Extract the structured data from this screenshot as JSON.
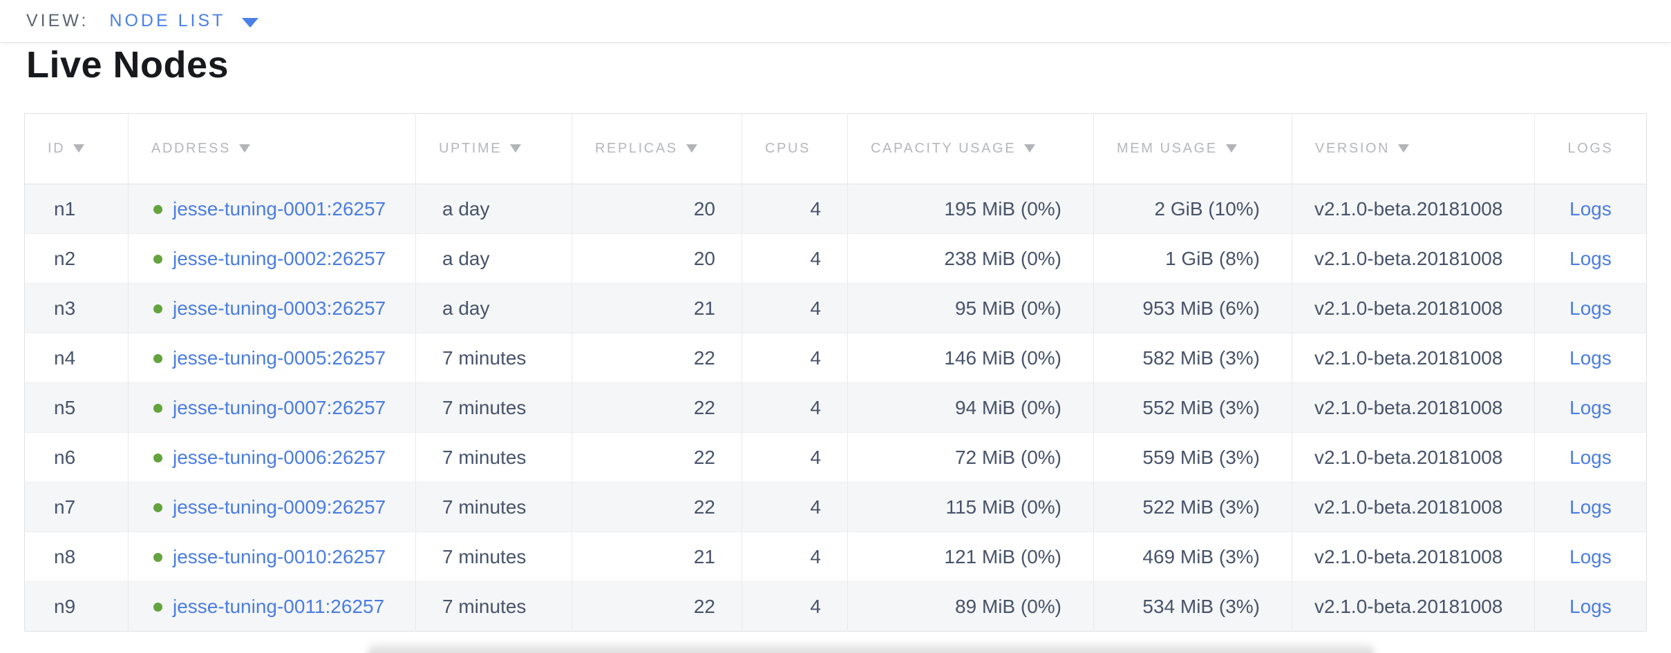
{
  "view_bar": {
    "label": "VIEW:",
    "selected_view": "NODE LIST",
    "dropdown_icon": "caret-down-icon"
  },
  "page": {
    "title": "Live Nodes"
  },
  "table": {
    "node_status_icon": "green-dot",
    "columns": [
      {
        "key": "id",
        "label": "ID",
        "sorted": true
      },
      {
        "key": "address",
        "label": "ADDRESS",
        "sorted": true
      },
      {
        "key": "uptime",
        "label": "UPTIME",
        "sorted": true
      },
      {
        "key": "replicas",
        "label": "REPLICAS",
        "sorted": true
      },
      {
        "key": "cpus",
        "label": "CPUS",
        "sorted": false
      },
      {
        "key": "capacity_usage",
        "label": "CAPACITY USAGE",
        "sorted": true
      },
      {
        "key": "mem_usage",
        "label": "MEM USAGE",
        "sorted": true
      },
      {
        "key": "version",
        "label": "VERSION",
        "sorted": true
      },
      {
        "key": "logs",
        "label": "LOGS",
        "sorted": false
      }
    ],
    "rows": [
      {
        "id": "n1",
        "address": "jesse-tuning-0001:26257",
        "uptime": "a day",
        "replicas": 20,
        "cpus": 4,
        "capacity_usage": "195 MiB (0%)",
        "mem_usage": "2 GiB (10%)",
        "version": "v2.1.0-beta.20181008",
        "logs_label": "Logs"
      },
      {
        "id": "n2",
        "address": "jesse-tuning-0002:26257",
        "uptime": "a day",
        "replicas": 20,
        "cpus": 4,
        "capacity_usage": "238 MiB (0%)",
        "mem_usage": "1 GiB (8%)",
        "version": "v2.1.0-beta.20181008",
        "logs_label": "Logs"
      },
      {
        "id": "n3",
        "address": "jesse-tuning-0003:26257",
        "uptime": "a day",
        "replicas": 21,
        "cpus": 4,
        "capacity_usage": "95 MiB (0%)",
        "mem_usage": "953 MiB (6%)",
        "version": "v2.1.0-beta.20181008",
        "logs_label": "Logs"
      },
      {
        "id": "n4",
        "address": "jesse-tuning-0005:26257",
        "uptime": "7 minutes",
        "replicas": 22,
        "cpus": 4,
        "capacity_usage": "146 MiB (0%)",
        "mem_usage": "582 MiB (3%)",
        "version": "v2.1.0-beta.20181008",
        "logs_label": "Logs"
      },
      {
        "id": "n5",
        "address": "jesse-tuning-0007:26257",
        "uptime": "7 minutes",
        "replicas": 22,
        "cpus": 4,
        "capacity_usage": "94 MiB (0%)",
        "mem_usage": "552 MiB (3%)",
        "version": "v2.1.0-beta.20181008",
        "logs_label": "Logs"
      },
      {
        "id": "n6",
        "address": "jesse-tuning-0006:26257",
        "uptime": "7 minutes",
        "replicas": 22,
        "cpus": 4,
        "capacity_usage": "72 MiB (0%)",
        "mem_usage": "559 MiB (3%)",
        "version": "v2.1.0-beta.20181008",
        "logs_label": "Logs"
      },
      {
        "id": "n7",
        "address": "jesse-tuning-0009:26257",
        "uptime": "7 minutes",
        "replicas": 22,
        "cpus": 4,
        "capacity_usage": "115 MiB (0%)",
        "mem_usage": "522 MiB (3%)",
        "version": "v2.1.0-beta.20181008",
        "logs_label": "Logs"
      },
      {
        "id": "n8",
        "address": "jesse-tuning-0010:26257",
        "uptime": "7 minutes",
        "replicas": 21,
        "cpus": 4,
        "capacity_usage": "121 MiB (0%)",
        "mem_usage": "469 MiB (3%)",
        "version": "v2.1.0-beta.20181008",
        "logs_label": "Logs"
      },
      {
        "id": "n9",
        "address": "jesse-tuning-0011:26257",
        "uptime": "7 minutes",
        "replicas": 22,
        "cpus": 4,
        "capacity_usage": "89 MiB (0%)",
        "mem_usage": "534 MiB (3%)",
        "version": "v2.1.0-beta.20181008",
        "logs_label": "Logs"
      }
    ]
  },
  "colors": {
    "view_accent": "#4a80e8",
    "link_blue": "#4a7de2",
    "status_green": "#64a33d",
    "header_gray": "#b5b7bb",
    "body_text": "#47536a"
  }
}
